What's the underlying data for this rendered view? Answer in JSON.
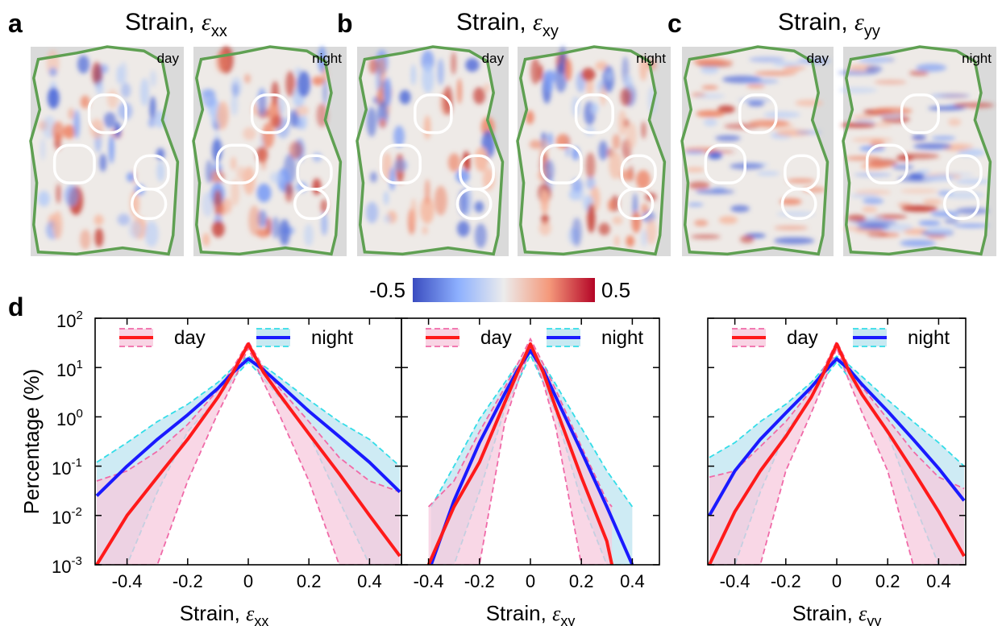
{
  "panel_labels": [
    "a",
    "b",
    "c",
    "d"
  ],
  "map_titles": [
    {
      "prefix": "Strain, ",
      "symbol": "ε",
      "sub": "xx"
    },
    {
      "prefix": "Strain, ",
      "symbol": "ε",
      "sub": "xy"
    },
    {
      "prefix": "Strain, ",
      "symbol": "ε",
      "sub": "yy"
    }
  ],
  "map_tags": [
    "day",
    "night"
  ],
  "colorbar": {
    "min_label": "-0.5",
    "max_label": "0.5",
    "low_color": "#3a4cc0",
    "mid_color": "#ececec",
    "high_color": "#b40426"
  },
  "colors": {
    "day_line": "#ff1a1a",
    "night_line": "#1a1aff",
    "day_dash": "#f06aa8",
    "night_dash": "#33dde8",
    "day_fill": "#f7c9dd",
    "night_fill": "#b9e3ef",
    "outline": "#5fa052",
    "map_bg": "#dadada"
  },
  "legend": {
    "day": "day",
    "night": "night"
  },
  "y_axis_label": "Percentage (%)",
  "y_tick_labels": [
    {
      "base": "10",
      "exp": "2"
    },
    {
      "base": "10",
      "exp": "1"
    },
    {
      "base": "10",
      "exp": "0"
    },
    {
      "base": "10",
      "exp": "-1"
    },
    {
      "base": "10",
      "exp": "-2"
    },
    {
      "base": "10",
      "exp": "-3"
    }
  ],
  "chart_data": [
    {
      "type": "line",
      "yscale": "log",
      "ylim": [
        0.001,
        100
      ],
      "xlim": [
        -0.5,
        0.5
      ],
      "x_ticks": [
        "-0.4",
        "-0.2",
        "0",
        "0.2",
        "0.4"
      ],
      "x_tick_values": [
        -0.4,
        -0.2,
        0,
        0.2,
        0.4
      ],
      "xlabel": {
        "prefix": "Strain, ",
        "symbol": "ε",
        "sub": "xx"
      },
      "ylabel": "Percentage (%)",
      "series": [
        {
          "name": "day",
          "x": [
            -0.5,
            -0.4,
            -0.3,
            -0.2,
            -0.1,
            -0.05,
            0,
            0.05,
            0.1,
            0.2,
            0.3,
            0.4,
            0.5
          ],
          "y": [
            0.001,
            0.01,
            0.06,
            0.35,
            2.5,
            8,
            30,
            8,
            3,
            0.45,
            0.07,
            0.01,
            0.0015
          ],
          "band_low": [
            0.001,
            0.001,
            0.001,
            0.05,
            1.2,
            5,
            25,
            5,
            1.2,
            0.05,
            0.001,
            0.001,
            0.001
          ],
          "band_high": [
            0.05,
            0.08,
            0.2,
            0.7,
            3.5,
            10,
            34,
            10,
            4,
            0.8,
            0.15,
            0.05,
            0.03
          ]
        },
        {
          "name": "night",
          "x": [
            -0.5,
            -0.4,
            -0.3,
            -0.2,
            -0.1,
            -0.05,
            0,
            0.05,
            0.1,
            0.2,
            0.3,
            0.4,
            0.5
          ],
          "y": [
            0.025,
            0.1,
            0.35,
            1.1,
            3.8,
            8,
            15,
            9,
            4.8,
            1.3,
            0.4,
            0.12,
            0.03
          ],
          "band_low": [
            0.001,
            0.001,
            0.03,
            0.5,
            2.5,
            6,
            13,
            6,
            2.6,
            0.45,
            0.02,
            0.001,
            0.001
          ],
          "band_high": [
            0.12,
            0.3,
            0.8,
            1.8,
            5,
            10,
            17,
            11,
            6.5,
            2.2,
            0.8,
            0.35,
            0.1
          ]
        }
      ]
    },
    {
      "type": "line",
      "yscale": "log",
      "ylim": [
        0.001,
        100
      ],
      "xlim": [
        -0.5,
        0.5
      ],
      "x_ticks": [
        "-0.4",
        "-0.2",
        "0",
        "0.2",
        "0.4"
      ],
      "x_tick_values": [
        -0.4,
        -0.2,
        0,
        0.2,
        0.4
      ],
      "xlabel": {
        "prefix": "Strain, ",
        "symbol": "ε",
        "sub": "xy"
      },
      "ylabel": "",
      "series": [
        {
          "name": "day",
          "x": [
            -0.4,
            -0.3,
            -0.2,
            -0.1,
            -0.05,
            0,
            0.05,
            0.1,
            0.2,
            0.3,
            0.32
          ],
          "y": [
            0.001,
            0.015,
            0.12,
            2,
            8,
            30,
            8,
            1.5,
            0.06,
            0.003,
            0.001
          ],
          "band_low": [
            0.001,
            0.001,
            0.001,
            0.8,
            5,
            25,
            5,
            0.6,
            0.001,
            0.001,
            0.001
          ],
          "band_high": [
            0.015,
            0.05,
            0.5,
            4,
            12,
            38,
            12,
            3.5,
            0.25,
            0.02,
            0.015
          ]
        },
        {
          "name": "night",
          "x": [
            -0.39,
            -0.3,
            -0.2,
            -0.1,
            -0.05,
            0,
            0.05,
            0.1,
            0.2,
            0.3,
            0.4
          ],
          "y": [
            0.001,
            0.02,
            0.3,
            3,
            9,
            22,
            9,
            2.5,
            0.2,
            0.015,
            0.001
          ],
          "band_low": [
            0.001,
            0.001,
            0.03,
            1.5,
            5,
            18,
            5,
            1.2,
            0.02,
            0.001,
            0.001
          ],
          "band_high": [
            0.015,
            0.1,
            0.9,
            5,
            12,
            26,
            12,
            4.5,
            0.6,
            0.08,
            0.015
          ]
        }
      ]
    },
    {
      "type": "line",
      "yscale": "log",
      "ylim": [
        0.001,
        100
      ],
      "xlim": [
        -0.5,
        0.5
      ],
      "x_ticks": [
        "-0.4",
        "-0.2",
        "0",
        "0.2",
        "0.4"
      ],
      "x_tick_values": [
        -0.4,
        -0.2,
        0,
        0.2,
        0.4
      ],
      "xlabel": {
        "prefix": "Strain, ",
        "symbol": "ε",
        "sub": "yy"
      },
      "ylabel": "",
      "series": [
        {
          "name": "day",
          "x": [
            -0.5,
            -0.4,
            -0.3,
            -0.2,
            -0.1,
            -0.05,
            0,
            0.05,
            0.1,
            0.2,
            0.3,
            0.4,
            0.5
          ],
          "y": [
            0.001,
            0.012,
            0.08,
            0.4,
            2.5,
            8,
            30,
            8,
            2.8,
            0.5,
            0.08,
            0.012,
            0.0015
          ],
          "band_low": [
            0.001,
            0.001,
            0.001,
            0.08,
            1.2,
            5,
            25,
            5,
            1.2,
            0.08,
            0.001,
            0.001,
            0.001
          ],
          "band_high": [
            0.06,
            0.08,
            0.25,
            0.8,
            3.5,
            10,
            34,
            10,
            4,
            0.9,
            0.2,
            0.06,
            0.035
          ]
        },
        {
          "name": "night",
          "x": [
            -0.5,
            -0.4,
            -0.3,
            -0.2,
            -0.1,
            -0.05,
            0,
            0.05,
            0.1,
            0.2,
            0.3,
            0.4,
            0.5
          ],
          "y": [
            0.01,
            0.08,
            0.35,
            1.2,
            4,
            8,
            15,
            9,
            4.5,
            1.3,
            0.35,
            0.09,
            0.02
          ],
          "band_low": [
            0.001,
            0.001,
            0.03,
            0.5,
            2.5,
            6,
            13,
            6,
            2.6,
            0.45,
            0.02,
            0.001,
            0.001
          ],
          "band_high": [
            0.15,
            0.3,
            0.8,
            1.8,
            5,
            10,
            17,
            11,
            6.5,
            2.2,
            0.8,
            0.3,
            0.1
          ]
        }
      ]
    }
  ]
}
